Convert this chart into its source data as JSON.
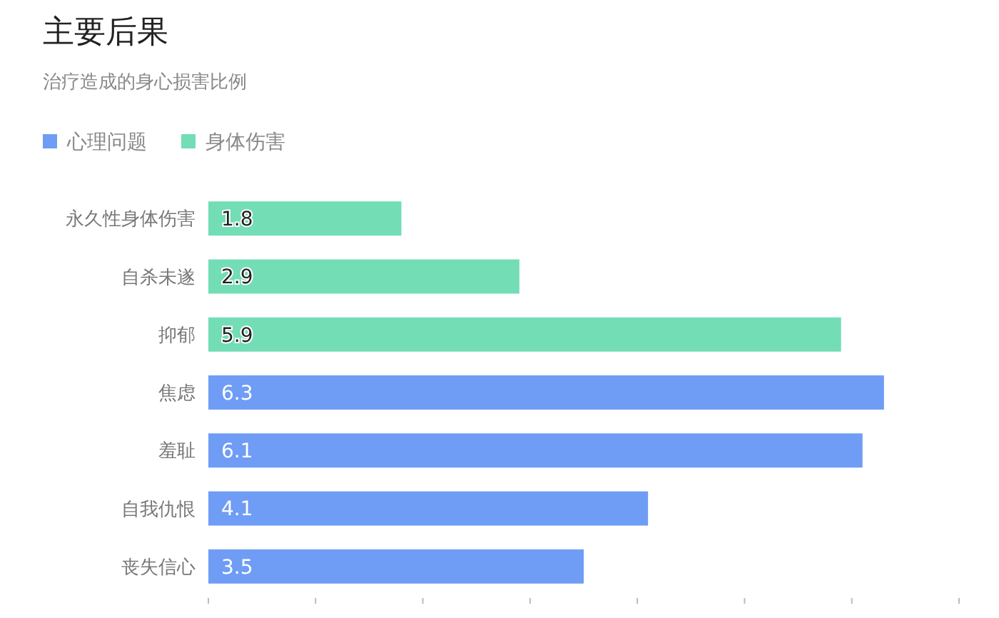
{
  "chart_data": {
    "type": "bar",
    "orientation": "horizontal",
    "stacked": true,
    "title": "主要后果",
    "subtitle": "治疗造成的身心损害比例",
    "categories": [
      "永久性身体伤害",
      "自杀未遂",
      "抑郁",
      "焦虑",
      "羞耻",
      "自我仇恨",
      "丧失信心"
    ],
    "series": [
      {
        "name": "心理问题",
        "color": "#6f9cf5",
        "values": [
          null,
          null,
          null,
          6.3,
          6.1,
          4.1,
          3.5
        ]
      },
      {
        "name": "身体伤害",
        "color": "#73ddb5",
        "values": [
          1.8,
          2.9,
          5.9,
          null,
          null,
          null,
          null
        ]
      }
    ],
    "xticks": [
      {
        "value": 0,
        "label": null
      },
      {
        "value": 1,
        "label": null
      },
      {
        "value": 2,
        "label": null
      },
      {
        "value": 3,
        "label": null
      },
      {
        "value": 4,
        "label": null
      },
      {
        "value": 5,
        "label": null
      },
      {
        "value": 6,
        "label": null
      },
      {
        "value": 7,
        "label": null
      }
    ],
    "tick_labels": "y",
    "legend": "top left",
    "data_labels": true
  }
}
